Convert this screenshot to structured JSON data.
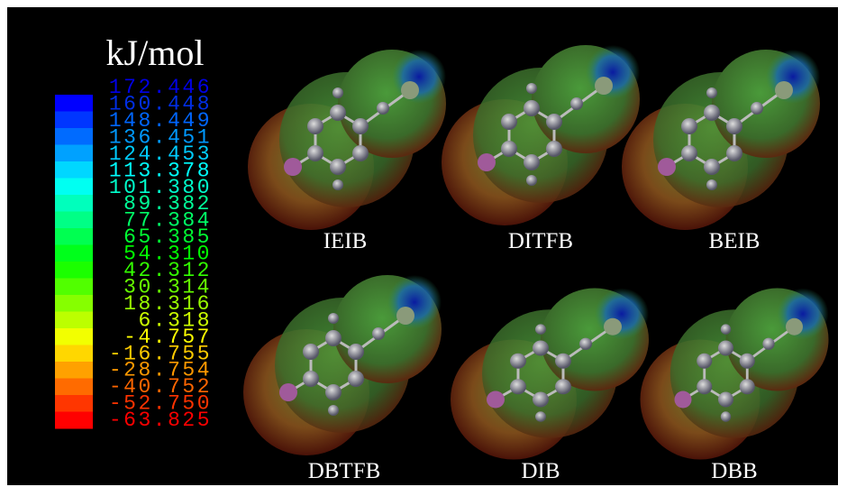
{
  "unit": "kJ/mol",
  "scale_labels": [
    "172.446",
    "160.448",
    "148.449",
    "136.451",
    "124.453",
    "113.378",
    "101.380",
    "89.382",
    "77.384",
    "65.385",
    "54.310",
    "42.312",
    "30.314",
    "18.316",
    "6.318",
    "-4.757",
    "-16.755",
    "-28.754",
    "-40.752",
    "-52.750",
    "-63.825"
  ],
  "molecules": [
    "IEIB",
    "DITFB",
    "BEIB",
    "DBTFB",
    "DIB",
    "DBB"
  ]
}
